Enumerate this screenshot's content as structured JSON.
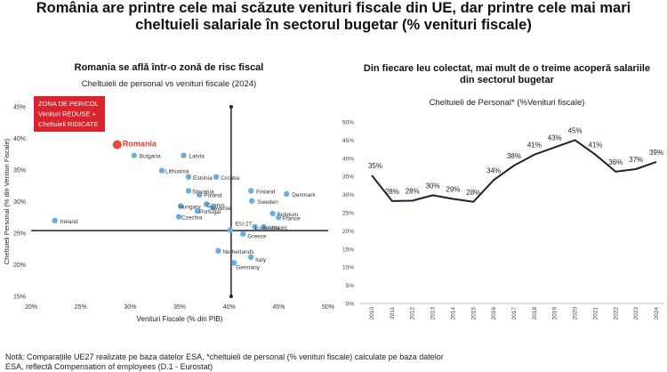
{
  "header": {
    "title_line1": "România are printre cele mai scăzute venituri fiscale din UE, dar printre cele mai mari",
    "title_line2": "cheltuieli salariale în sectorul bugetar (% venituri fiscale)"
  },
  "left_panel": {
    "subtitle": "Romania se află într-o zonă de risc fiscal",
    "chart_title": "Cheltuieli de personal vs venituri fiscale (2024)",
    "danger_box": [
      "ZONA DE PERICOL",
      "Venituri REDUSE +",
      "Cheltuieli RIDICATE"
    ]
  },
  "right_panel": {
    "subtitle": "Din fiecare leu colectat, mai mult de o treime acoperă salariile din sectorul bugetar",
    "chart_title": "Cheltuieli de Personal* (%Venituri fiscale)"
  },
  "footnote": {
    "line1": "Notă: Comparațiile UE27 realizate pe baza datelor ESA, *cheltuieli de personal (% venituri fiscale) calculate pe baza datelor",
    "line2": "ESA, reflectă Compensation of employees (D.1 - Eurostat)"
  },
  "colors": {
    "point": "#6aaee0",
    "highlight": "#e84a3c",
    "highlight_text": "#d93b2d",
    "danger_box": "#d9232d",
    "line": "#1a2233",
    "quadrant_line": "#1a2233"
  },
  "chart_data": [
    {
      "type": "scatter",
      "title": "Cheltuieli de personal vs venituri fiscale (2024)",
      "xlabel": "Venituri Fiscale (% din PIB)",
      "ylabel": "Cheltuieli Personal (% din Venituri Fiscale)",
      "xlim": [
        20,
        50
      ],
      "ylim": [
        15,
        45
      ],
      "xticks": [
        "20%",
        "25%",
        "30%",
        "35%",
        "40%",
        "45%",
        "50%"
      ],
      "yticks": [
        "15%",
        "20%",
        "25%",
        "30%",
        "35%",
        "40%",
        "45%"
      ],
      "reference_lines": {
        "x": 40.2,
        "y": 25.4
      },
      "highlight": "Romania",
      "points": [
        {
          "label": "Romania",
          "x": 28.7,
          "y": 39.0
        },
        {
          "label": "Bulgaria",
          "x": 30.4,
          "y": 37.3
        },
        {
          "label": "Latvia",
          "x": 35.4,
          "y": 37.3
        },
        {
          "label": "Lithuania",
          "x": 33.2,
          "y": 34.9
        },
        {
          "label": "Estonia",
          "x": 35.9,
          "y": 33.9
        },
        {
          "label": "Croatia",
          "x": 38.7,
          "y": 33.9
        },
        {
          "label": "Slovakia",
          "x": 35.9,
          "y": 31.7
        },
        {
          "label": "Poland",
          "x": 37.0,
          "y": 31.1
        },
        {
          "label": "Finland",
          "x": 42.2,
          "y": 31.7
        },
        {
          "label": "Denmark",
          "x": 45.8,
          "y": 31.2
        },
        {
          "label": "Sweden",
          "x": 42.3,
          "y": 30.1
        },
        {
          "label": "Cyprus",
          "x": 37.7,
          "y": 29.6
        },
        {
          "label": "Slovenia",
          "x": 38.4,
          "y": 29.1
        },
        {
          "label": "Hungary",
          "x": 35.1,
          "y": 29.3
        },
        {
          "label": "Portugal",
          "x": 36.8,
          "y": 28.5
        },
        {
          "label": "Czechia",
          "x": 34.9,
          "y": 27.6
        },
        {
          "label": "Belgium",
          "x": 44.4,
          "y": 28.1
        },
        {
          "label": "France",
          "x": 45.0,
          "y": 27.5
        },
        {
          "label": "Ireland",
          "x": 22.4,
          "y": 27.0
        },
        {
          "label": "EU-27",
          "x": 40.1,
          "y": 25.5
        },
        {
          "label": "Luxembourg",
          "x": 42.6,
          "y": 26.0
        },
        {
          "label": "Austria",
          "x": 43.5,
          "y": 26.0
        },
        {
          "label": "Greece",
          "x": 41.4,
          "y": 24.9
        },
        {
          "label": "Netherlands",
          "x": 38.9,
          "y": 22.2
        },
        {
          "label": "Italy",
          "x": 42.2,
          "y": 21.2
        },
        {
          "label": "Germany",
          "x": 40.5,
          "y": 20.3
        }
      ]
    },
    {
      "type": "line",
      "title": "Cheltuieli de Personal* (%Venituri fiscale)",
      "ylim": [
        0,
        50
      ],
      "yticks": [
        "0%",
        "5%",
        "10%",
        "15%",
        "20%",
        "25%",
        "30%",
        "35%",
        "40%",
        "45%",
        "50%"
      ],
      "x": [
        "2010",
        "2011",
        "2012",
        "2013",
        "2014",
        "2015",
        "2016",
        "2017",
        "2018",
        "2019",
        "2020",
        "2021",
        "2022",
        "2023",
        "2024"
      ],
      "series": [
        {
          "values": [
            35.3,
            28.2,
            28.3,
            29.8,
            28.8,
            28.0,
            34.0,
            38.0,
            41.0,
            43.0,
            45.0,
            41.0,
            36.3,
            37.0,
            39.0
          ],
          "data_labels": [
            "35%",
            "28%",
            "28%",
            "30%",
            "29%",
            "28%",
            "34%",
            "38%",
            "41%",
            "43%",
            "45%",
            "41%",
            "36%",
            "37%",
            "39%"
          ]
        }
      ]
    }
  ]
}
